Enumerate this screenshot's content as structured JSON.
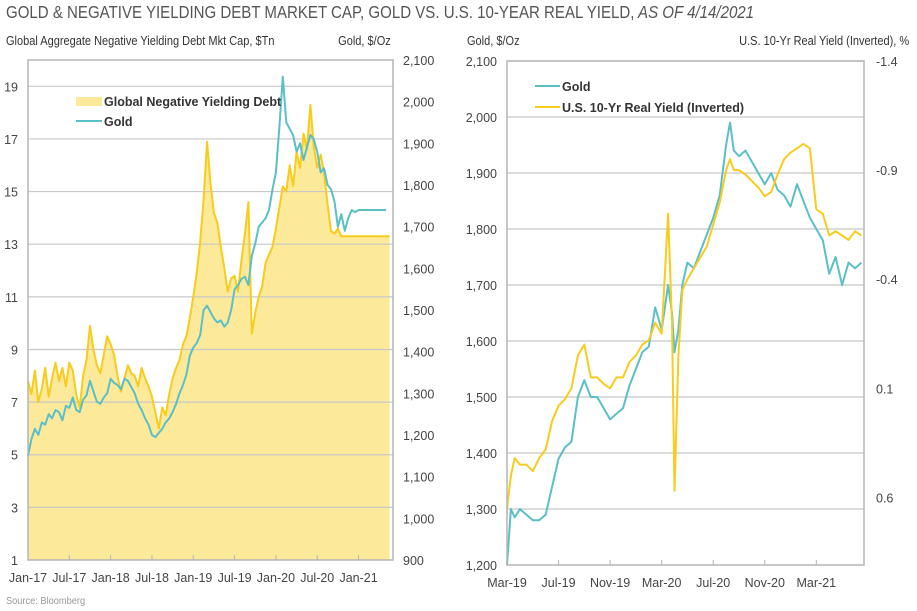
{
  "header": {
    "title_main": "GOLD & NEGATIVE YIELDING DEBT MARKET CAP, GOLD VS. U.S. 10-YEAR REAL YIELD,",
    "title_date": " AS OF 4/14/2021"
  },
  "footer": {
    "source": "Source: Bloomberg"
  },
  "colors": {
    "gold_line": "#5bbfc8",
    "debt_line": "#f7cc1c",
    "debt_fill": "#fde99a",
    "real_yield_line": "#f7cc1c",
    "grid": "#c8c8c8",
    "frame": "#b5b5b5"
  },
  "chart_data": [
    {
      "type": "area",
      "title": "Global Negative Yielding Debt Mkt Cap vs Gold",
      "ylabel_left": "Global Aggregate Negative Yielding Debt Mkt Cap, $Tn",
      "ylabel_right": "Gold, $/Oz",
      "ylim_left": [
        1,
        20
      ],
      "ylim_right": [
        900,
        2100
      ],
      "yticks_left": [
        "1",
        "3",
        "5",
        "7",
        "9",
        "11",
        "13",
        "15",
        "17",
        "19"
      ],
      "yticks_right": [
        "900",
        "1,000",
        "1,100",
        "1,200",
        "1,300",
        "1,400",
        "1,500",
        "1,600",
        "1,700",
        "1,800",
        "1,900",
        "2,000",
        "2,100"
      ],
      "xticks": [
        "Jan-17",
        "Jul-17",
        "Jan-18",
        "Jul-18",
        "Jan-19",
        "Jul-19",
        "Jan-20",
        "Jul-20",
        "Jan-21"
      ],
      "xrange_months": [
        0,
        53
      ],
      "grid": true,
      "legend_position": "top-left",
      "series": [
        {
          "name": "Global Negative Yielding Debt",
          "axis": "left",
          "kind": "area",
          "x": [
            0,
            0.5,
            1,
            1.5,
            2,
            2.5,
            3,
            3.5,
            4,
            4.5,
            5,
            5.5,
            6,
            6.5,
            7,
            7.5,
            8,
            8.5,
            9,
            9.5,
            10,
            10.5,
            11,
            11.5,
            12,
            12.5,
            13,
            13.5,
            14,
            14.5,
            15,
            15.5,
            16,
            16.5,
            17,
            17.5,
            18,
            18.5,
            19,
            19.5,
            20,
            20.5,
            21,
            21.5,
            22,
            22.5,
            23,
            23.5,
            24,
            24.5,
            25,
            25.5,
            26,
            26.5,
            27,
            27.5,
            28,
            28.5,
            29,
            29.5,
            30,
            30.5,
            31,
            31.5,
            32,
            32.5,
            33,
            33.5,
            34,
            34.5,
            35,
            35.5,
            36,
            36.5,
            37,
            37.5,
            38,
            38.5,
            39,
            39.5,
            40,
            40.5,
            41,
            41.5,
            42,
            42.5,
            43,
            43.5,
            44,
            44.5,
            45,
            45.5,
            46,
            46.5,
            47,
            47.5,
            48,
            48.5,
            49,
            49.5,
            50,
            50.5,
            51,
            51.5,
            52,
            52.5
          ],
          "values": [
            7.8,
            7.3,
            8.2,
            7.0,
            7.5,
            8.3,
            7.2,
            7.9,
            8.5,
            7.8,
            8.3,
            7.6,
            8.5,
            8.2,
            7.3,
            6.8,
            8.0,
            8.6,
            9.9,
            9.0,
            8.4,
            8.1,
            8.8,
            9.5,
            9.2,
            8.8,
            8.0,
            7.4,
            7.9,
            8.4,
            8.1,
            8.0,
            7.6,
            8.3,
            7.9,
            7.6,
            7.2,
            6.6,
            6.0,
            6.8,
            6.5,
            7.3,
            7.9,
            8.3,
            8.6,
            9.2,
            9.5,
            10.2,
            11.0,
            11.9,
            13.1,
            14.7,
            16.9,
            15.3,
            14.2,
            13.8,
            12.9,
            12.1,
            11.2,
            11.7,
            11.8,
            11.2,
            12.4,
            13.4,
            14.6,
            9.6,
            10.4,
            11.0,
            11.4,
            12.3,
            12.6,
            12.9,
            13.6,
            14.4,
            15.2,
            15.0,
            16.0,
            15.2,
            16.5,
            15.9,
            17.2,
            16.6,
            18.3,
            16.7,
            15.9,
            16.4,
            15.7,
            14.5,
            13.5,
            13.4,
            13.6,
            13.3,
            13.3,
            13.3,
            13.3,
            13.3,
            13.3,
            13.3,
            13.3,
            13.3,
            13.3,
            13.3,
            13.3,
            13.3,
            13.3,
            13.3
          ]
        },
        {
          "name": "Gold",
          "axis": "right",
          "kind": "line",
          "x": [
            0,
            0.5,
            1,
            1.5,
            2,
            2.5,
            3,
            3.5,
            4,
            4.5,
            5,
            5.5,
            6,
            6.5,
            7,
            7.5,
            8,
            8.5,
            9,
            9.5,
            10,
            10.5,
            11,
            11.5,
            12,
            12.5,
            13,
            13.5,
            14,
            14.5,
            15,
            15.5,
            16,
            16.5,
            17,
            17.5,
            18,
            18.5,
            19,
            19.5,
            20,
            20.5,
            21,
            21.5,
            22,
            22.5,
            23,
            23.5,
            24,
            24.5,
            25,
            25.5,
            26,
            26.5,
            27,
            27.5,
            28,
            28.5,
            29,
            29.5,
            30,
            30.5,
            31,
            31.5,
            32,
            32.5,
            33,
            33.5,
            34,
            34.5,
            35,
            35.5,
            36,
            36.5,
            37,
            37.5,
            38,
            38.5,
            39,
            39.5,
            40,
            40.5,
            41,
            41.5,
            42,
            42.5,
            43,
            43.5,
            44,
            44.5,
            45,
            45.5,
            46,
            46.5,
            47,
            47.5,
            48,
            48.5,
            49,
            49.5,
            50,
            50.5,
            51,
            51.5,
            52
          ],
          "values": [
            1150,
            1190,
            1215,
            1200,
            1230,
            1225,
            1250,
            1240,
            1260,
            1255,
            1235,
            1270,
            1265,
            1290,
            1260,
            1255,
            1285,
            1295,
            1330,
            1305,
            1280,
            1275,
            1290,
            1300,
            1335,
            1325,
            1320,
            1310,
            1335,
            1330,
            1315,
            1300,
            1275,
            1260,
            1240,
            1225,
            1200,
            1195,
            1205,
            1215,
            1230,
            1240,
            1255,
            1275,
            1300,
            1320,
            1345,
            1390,
            1410,
            1420,
            1440,
            1500,
            1510,
            1495,
            1480,
            1470,
            1475,
            1460,
            1470,
            1500,
            1550,
            1560,
            1575,
            1580,
            1560,
            1630,
            1660,
            1700,
            1710,
            1720,
            1740,
            1790,
            1830,
            1940,
            2060,
            1950,
            1935,
            1920,
            1880,
            1900,
            1860,
            1890,
            1920,
            1910,
            1880,
            1830,
            1840,
            1800,
            1790,
            1760,
            1700,
            1730,
            1690,
            1720,
            1740,
            1735,
            1740,
            1740,
            1740,
            1740,
            1740,
            1740,
            1740,
            1740,
            1740
          ]
        }
      ]
    },
    {
      "type": "line",
      "title": "Gold vs U.S. 10-Yr Real Yield (Inverted)",
      "ylabel_left": "Gold, $/Oz",
      "ylabel_right": "U.S. 10-Yr Real Yield (Inverted), %",
      "ylim_left": [
        1200,
        2100
      ],
      "ylim_right_inverted": [
        -1.4,
        0.91
      ],
      "yticks_left": [
        "1,200",
        "1,300",
        "1,400",
        "1,500",
        "1,600",
        "1,700",
        "1,800",
        "1,900",
        "2,000",
        "2,100"
      ],
      "yticks_right": [
        "-1.4",
        "-0.9",
        "-0.4",
        "0.1",
        "0.6"
      ],
      "xticks": [
        "Mar-19",
        "Jul-19",
        "Nov-19",
        "Mar-20",
        "Jul-20",
        "Nov-20",
        "Mar-21"
      ],
      "xrange_months": [
        0,
        27.7
      ],
      "grid": true,
      "legend_position": "top-left",
      "series": [
        {
          "name": "Gold",
          "axis": "left",
          "x": [
            0,
            0.3,
            0.6,
            1,
            1.5,
            2,
            2.5,
            3,
            3.5,
            4,
            4.5,
            5,
            5.5,
            6,
            6.5,
            7,
            7.5,
            8,
            8.5,
            9,
            9.5,
            10,
            10.5,
            11,
            11.5,
            12,
            12.5,
            12.8,
            13,
            13.3,
            13.6,
            14,
            14.5,
            15,
            15.5,
            16,
            16.5,
            17,
            17.3,
            17.6,
            18,
            18.5,
            19,
            19.5,
            20,
            20.5,
            21,
            21.5,
            22,
            22.5,
            23,
            23.5,
            24,
            24.5,
            25,
            25.5,
            26,
            26.5,
            27,
            27.5
          ],
          "values": [
            1200,
            1300,
            1285,
            1300,
            1290,
            1280,
            1280,
            1290,
            1340,
            1390,
            1410,
            1420,
            1500,
            1530,
            1500,
            1500,
            1480,
            1460,
            1470,
            1480,
            1520,
            1550,
            1580,
            1590,
            1660,
            1620,
            1700,
            1650,
            1580,
            1620,
            1700,
            1740,
            1730,
            1760,
            1790,
            1820,
            1860,
            1950,
            1990,
            1940,
            1930,
            1940,
            1920,
            1900,
            1880,
            1900,
            1870,
            1860,
            1840,
            1880,
            1850,
            1820,
            1800,
            1780,
            1720,
            1750,
            1700,
            1740,
            1730,
            1740
          ]
        },
        {
          "name": "U.S. 10-Yr Real Yield (Inverted)",
          "axis": "right",
          "x": [
            0,
            0.3,
            0.6,
            1,
            1.5,
            2,
            2.5,
            3,
            3.5,
            4,
            4.5,
            5,
            5.5,
            6,
            6.5,
            7,
            7.5,
            8,
            8.5,
            9,
            9.5,
            10,
            10.5,
            11,
            11.5,
            12,
            12.5,
            12.8,
            13,
            13.3,
            13.6,
            14,
            14.5,
            15,
            15.5,
            16,
            16.5,
            17,
            17.3,
            17.6,
            18,
            18.5,
            19,
            19.5,
            20,
            20.5,
            21,
            21.5,
            22,
            22.5,
            23,
            23.5,
            24,
            24.5,
            25,
            25.5,
            26,
            26.5,
            27,
            27.5
          ],
          "values": [
            0.65,
            0.5,
            0.42,
            0.45,
            0.45,
            0.48,
            0.42,
            0.38,
            0.25,
            0.18,
            0.15,
            0.1,
            -0.05,
            -0.1,
            0.05,
            0.05,
            0.08,
            0.1,
            0.05,
            0.05,
            -0.02,
            -0.05,
            -0.1,
            -0.12,
            -0.2,
            -0.15,
            -0.7,
            -0.2,
            0.57,
            -0.05,
            -0.35,
            -0.4,
            -0.45,
            -0.5,
            -0.55,
            -0.65,
            -0.75,
            -0.9,
            -0.95,
            -0.9,
            -0.9,
            -0.88,
            -0.85,
            -0.82,
            -0.78,
            -0.8,
            -0.88,
            -0.95,
            -0.98,
            -1.0,
            -1.02,
            -1.0,
            -0.72,
            -0.7,
            -0.6,
            -0.62,
            -0.6,
            -0.58,
            -0.62,
            -0.6
          ]
        }
      ]
    }
  ]
}
